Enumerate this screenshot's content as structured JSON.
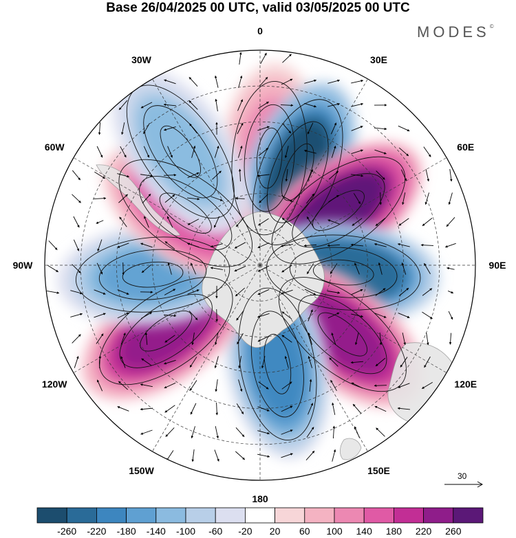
{
  "title": "Base 26/04/2025 00 UTC, valid 03/05/2025 00 UTC",
  "brand": "MODES",
  "brand_mark": "©",
  "projection": "south-polar-stereographic",
  "longitude_labels": [
    "0",
    "30E",
    "60E",
    "90E",
    "120E",
    "150E",
    "180",
    "150W",
    "120W",
    "90W",
    "60W",
    "30W"
  ],
  "vector_reference": "30",
  "colors": {
    "land": "#e6e6e6",
    "ocean": "#ffffff",
    "negative": [
      "#1c4d6e",
      "#2a6b98",
      "#3d86bf",
      "#5fa0d2",
      "#8bbbe0",
      "#b8cfe8",
      "#dcdff0"
    ],
    "positive": [
      "#f7d6d8",
      "#f4b3c2",
      "#ec88b2",
      "#e05aa5",
      "#c22e95",
      "#8f1d8a",
      "#5b1877"
    ]
  },
  "chart_data": {
    "type": "heatmap",
    "variable": "anomaly with wind vectors",
    "colorbar": {
      "ticks": [
        "-260",
        "-220",
        "-180",
        "-140",
        "-100",
        "-60",
        "-20",
        "20",
        "60",
        "100",
        "140",
        "180",
        "220",
        "260"
      ],
      "levels": [
        -300,
        -260,
        -220,
        -180,
        -140,
        -100,
        -60,
        -20,
        20,
        60,
        100,
        140,
        180,
        220,
        260,
        300
      ],
      "colors": [
        "#1c4d6e",
        "#2a6b98",
        "#3d86bf",
        "#5fa0d2",
        "#8bbbe0",
        "#b8cfe8",
        "#dcdff0",
        "#ffffff",
        "#f7d6d8",
        "#f4b3c2",
        "#ec88b2",
        "#e05aa5",
        "#c22e95",
        "#8f1d8a",
        "#5b1877"
      ]
    },
    "anomaly_centers": [
      {
        "lon": 5,
        "lat": -45,
        "value": 130
      },
      {
        "lon": 22,
        "lat": -48,
        "value": -270
      },
      {
        "lon": 55,
        "lat": -50,
        "value": 280
      },
      {
        "lon": 95,
        "lat": -55,
        "value": -260
      },
      {
        "lon": 130,
        "lat": -45,
        "value": 240
      },
      {
        "lon": 170,
        "lat": -48,
        "value": -200
      },
      {
        "lon": -125,
        "lat": -42,
        "value": 240
      },
      {
        "lon": -95,
        "lat": -45,
        "value": -150
      },
      {
        "lon": -55,
        "lat": -52,
        "value": 160
      },
      {
        "lon": -35,
        "lat": -32,
        "value": -120
      }
    ]
  }
}
